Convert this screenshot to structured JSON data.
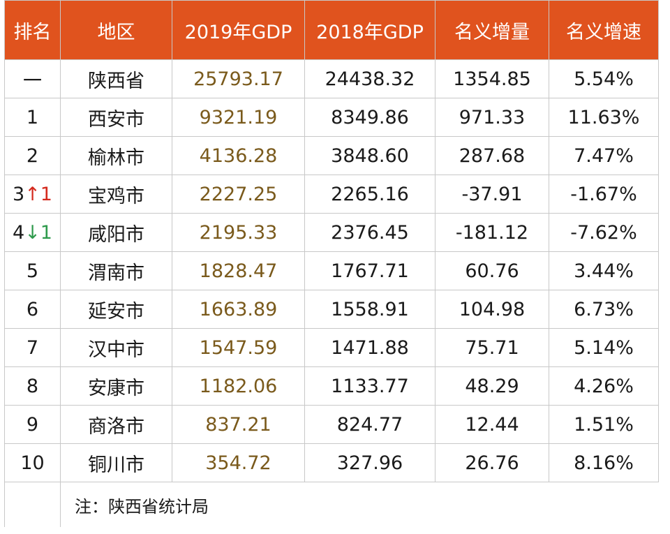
{
  "table": {
    "headers": [
      "排名",
      "地区",
      "2019年GDP",
      "2018年GDP",
      "名义增量",
      "名义增速"
    ],
    "rows": [
      {
        "rank": "一",
        "change": "",
        "dir": "",
        "region": "陕西省",
        "gdp2019": "25793.17",
        "gdp2018": "24438.32",
        "increase": "1354.85",
        "rate": "5.54%"
      },
      {
        "rank": "1",
        "change": "",
        "dir": "",
        "region": "西安市",
        "gdp2019": "9321.19",
        "gdp2018": "8349.86",
        "increase": "971.33",
        "rate": "11.63%"
      },
      {
        "rank": "2",
        "change": "",
        "dir": "",
        "region": "榆林市",
        "gdp2019": "4136.28",
        "gdp2018": "3848.60",
        "increase": "287.68",
        "rate": "7.47%"
      },
      {
        "rank": "3",
        "change": "↑1",
        "dir": "up",
        "region": "宝鸡市",
        "gdp2019": "2227.25",
        "gdp2018": "2265.16",
        "increase": "-37.91",
        "rate": "-1.67%"
      },
      {
        "rank": "4",
        "change": "↓1",
        "dir": "down",
        "region": "咸阳市",
        "gdp2019": "2195.33",
        "gdp2018": "2376.45",
        "increase": "-181.12",
        "rate": "-7.62%"
      },
      {
        "rank": "5",
        "change": "",
        "dir": "",
        "region": "渭南市",
        "gdp2019": "1828.47",
        "gdp2018": "1767.71",
        "increase": "60.76",
        "rate": "3.44%"
      },
      {
        "rank": "6",
        "change": "",
        "dir": "",
        "region": "延安市",
        "gdp2019": "1663.89",
        "gdp2018": "1558.91",
        "increase": "104.98",
        "rate": "6.73%"
      },
      {
        "rank": "7",
        "change": "",
        "dir": "",
        "region": "汉中市",
        "gdp2019": "1547.59",
        "gdp2018": "1471.88",
        "increase": "75.71",
        "rate": "5.14%"
      },
      {
        "rank": "8",
        "change": "",
        "dir": "",
        "region": "安康市",
        "gdp2019": "1182.06",
        "gdp2018": "1133.77",
        "increase": "48.29",
        "rate": "4.26%"
      },
      {
        "rank": "9",
        "change": "",
        "dir": "",
        "region": "商洛市",
        "gdp2019": "837.21",
        "gdp2018": "824.77",
        "increase": "12.44",
        "rate": "1.51%"
      },
      {
        "rank": "10",
        "change": "",
        "dir": "",
        "region": "铜川市",
        "gdp2019": "354.72",
        "gdp2018": "327.96",
        "increase": "26.76",
        "rate": "8.16%"
      }
    ],
    "note": "注：陕西省统计局"
  },
  "colors": {
    "header_bg": "#e0531e",
    "header_text": "#ffffff",
    "gdp2019_text": "#7a5a1c",
    "rank_up": "#d42a1e",
    "rank_down": "#2e9a4c"
  }
}
